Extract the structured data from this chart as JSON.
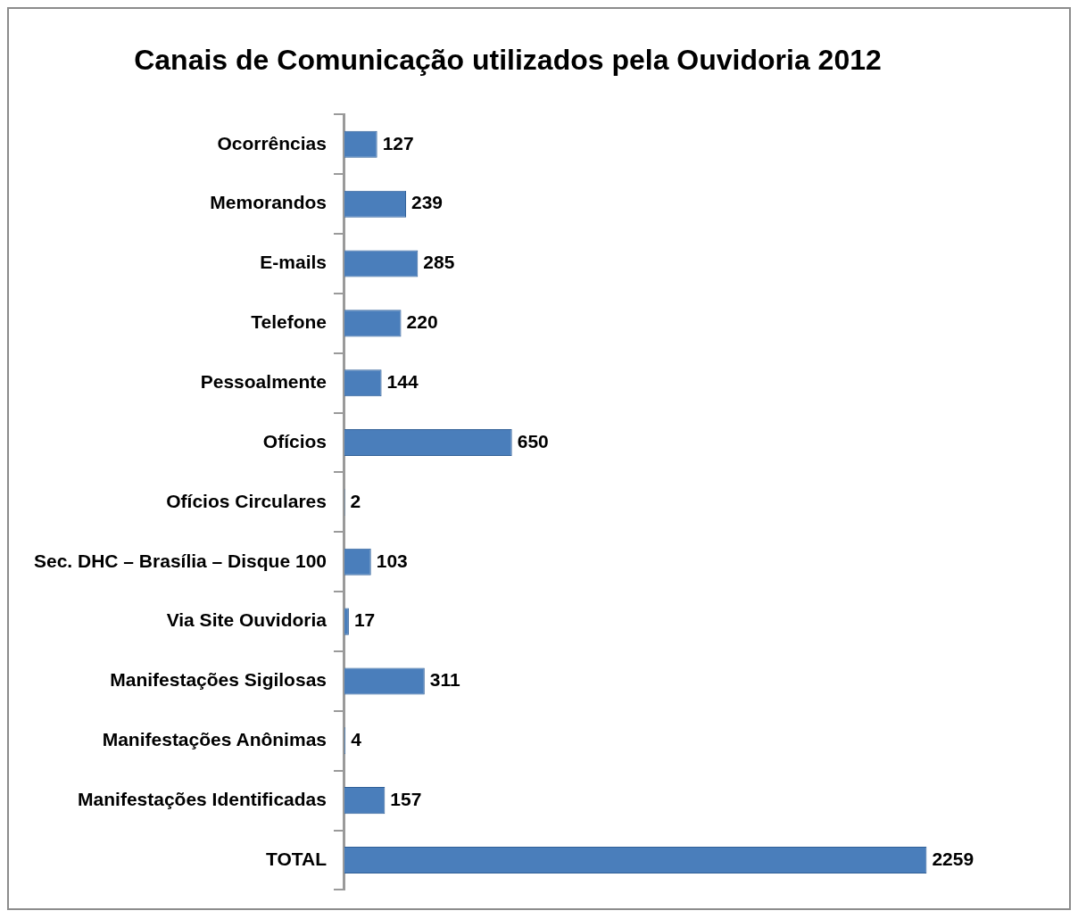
{
  "chart_data": {
    "type": "bar",
    "orientation": "horizontal",
    "title": "Canais de Comunicação utilizados pela Ouvidoria 2012",
    "categories": [
      "Ocorrências",
      "Memorandos",
      "E-mails",
      "Telefone",
      "Pessoalmente",
      "Ofícios",
      "Ofícios Circulares",
      "Sec. DHC – Brasília – Disque 100",
      "Via Site Ouvidoria",
      "Manifestações Sigilosas",
      "Manifestações Anônimas",
      "Manifestações Identificadas",
      "TOTAL"
    ],
    "values": [
      127,
      239,
      285,
      220,
      144,
      650,
      2,
      103,
      17,
      311,
      4,
      157,
      2259
    ],
    "color": "#4a7ebb",
    "data_labels": true,
    "legend": false
  }
}
